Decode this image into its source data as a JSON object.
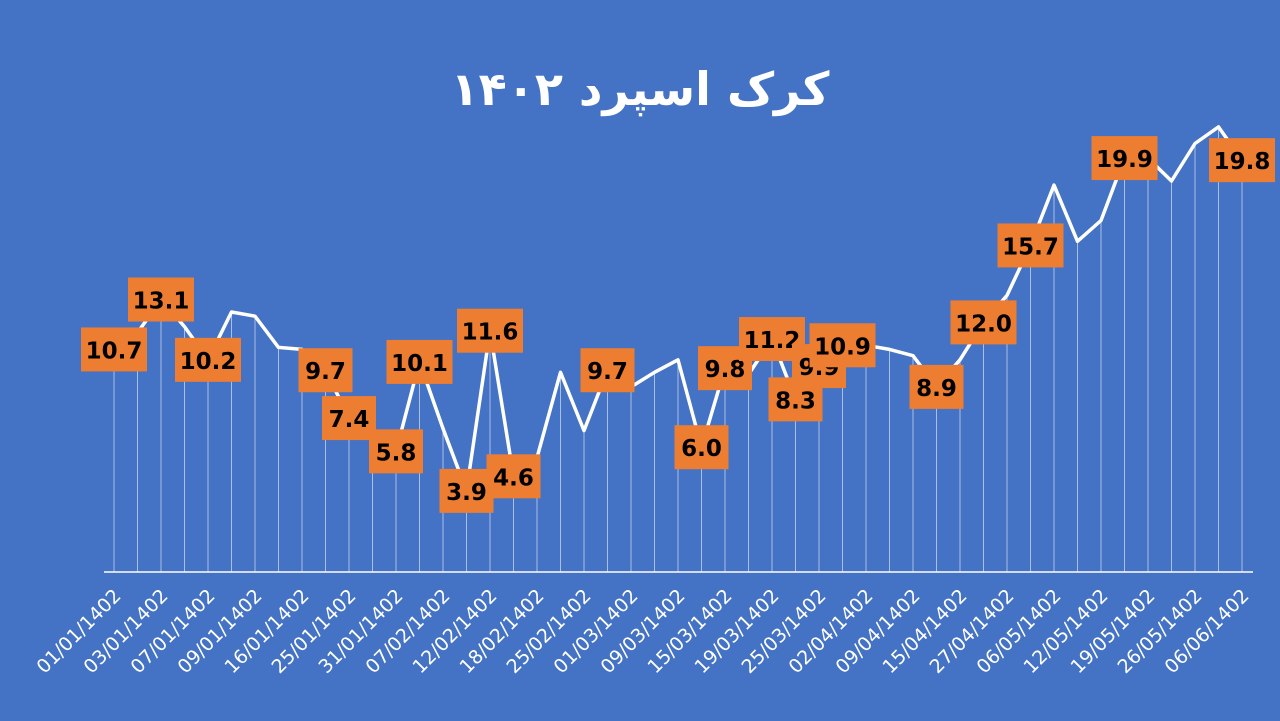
{
  "chart_data": {
    "type": "line",
    "title": "کرک اسپرد ۱۴۰۲",
    "xlabel": "",
    "ylabel": "",
    "ylim": [
      0,
      25
    ],
    "grid": "vertical drop lines",
    "legend": "none",
    "colors": {
      "background": "#4472C4",
      "line": "#FFFFFF",
      "label_fill": "#ED7D31",
      "label_text": "#000000",
      "axis": "#FFFFFF"
    },
    "x_tick_labels": [
      "01/01/1402",
      "03/01/1402",
      "07/01/1402",
      "09/01/1402",
      "16/01/1402",
      "25/01/1402",
      "31/01/1402",
      "07/02/1402",
      "12/02/1402",
      "18/02/1402",
      "25/02/1402",
      "01/03/1402",
      "09/03/1402",
      "15/03/1402",
      "19/03/1402",
      "25/03/1402",
      "02/04/1402",
      "09/04/1402",
      "15/04/1402",
      "27/04/1402",
      "06/05/1402",
      "12/05/1402",
      "19/05/1402",
      "26/05/1402",
      "06/06/1402"
    ],
    "values": [
      10.7,
      11.5,
      13.1,
      11.8,
      10.2,
      12.5,
      12.3,
      10.8,
      10.7,
      9.7,
      7.4,
      6.6,
      5.8,
      10.1,
      6.9,
      3.9,
      11.6,
      4.6,
      5.5,
      9.6,
      6.8,
      9.7,
      8.9,
      9.6,
      10.2,
      6.0,
      9.8,
      9.5,
      11.2,
      8.3,
      9.9,
      10.9,
      10.9,
      10.7,
      10.4,
      8.9,
      10.2,
      12.0,
      13.3,
      15.7,
      18.6,
      15.9,
      16.9,
      19.9,
      19.9,
      18.8,
      20.6,
      21.4,
      19.8
    ],
    "data_labels": [
      {
        "index": 0,
        "text": "10.7"
      },
      {
        "index": 2,
        "text": "13.1"
      },
      {
        "index": 4,
        "text": "10.2"
      },
      {
        "index": 9,
        "text": "9.7"
      },
      {
        "index": 10,
        "text": "7.4"
      },
      {
        "index": 12,
        "text": "5.8"
      },
      {
        "index": 13,
        "text": "10.1"
      },
      {
        "index": 15,
        "text": "3.9"
      },
      {
        "index": 16,
        "text": "11.6"
      },
      {
        "index": 17,
        "text": "4.6"
      },
      {
        "index": 21,
        "text": "9.7"
      },
      {
        "index": 25,
        "text": "6.0"
      },
      {
        "index": 26,
        "text": "9.8"
      },
      {
        "index": 28,
        "text": "11.2"
      },
      {
        "index": 29,
        "text": "8.3"
      },
      {
        "index": 30,
        "text": "9.9"
      },
      {
        "index": 31,
        "text": "10.9"
      },
      {
        "index": 35,
        "text": "8.9"
      },
      {
        "index": 37,
        "text": "12.0"
      },
      {
        "index": 39,
        "text": "15.7"
      },
      {
        "index": 43,
        "text": "19.9"
      },
      {
        "index": 48,
        "text": "19.8"
      }
    ]
  }
}
